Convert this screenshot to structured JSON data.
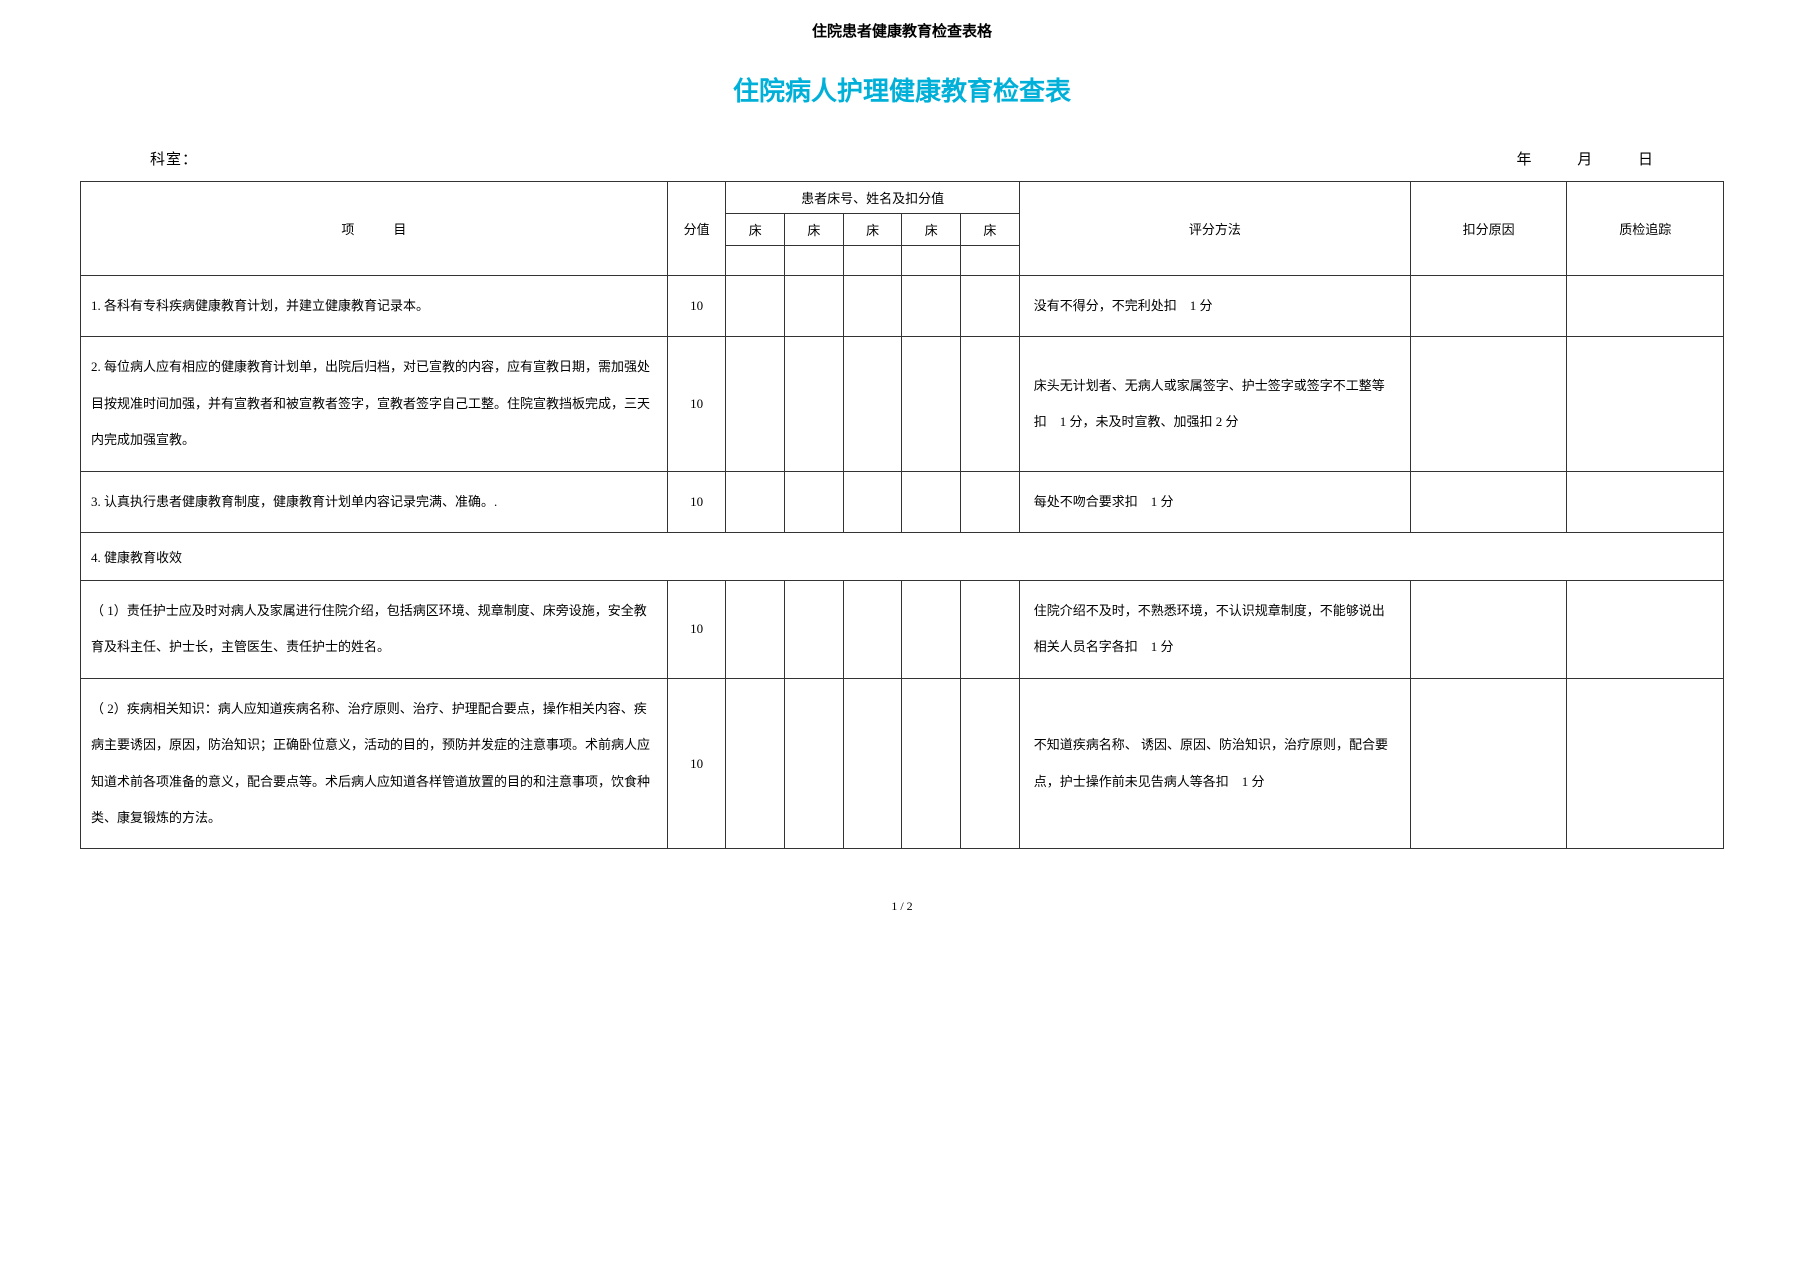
{
  "doc_header": "住院患者健康教育检查表格",
  "main_title": "住院病人护理健康教育检查表",
  "meta": {
    "dept_label": "科室：",
    "year": "年",
    "month": "月",
    "day": "日"
  },
  "headers": {
    "item": "项　　　目",
    "score": "分值",
    "patient": "患者床号、姓名及扣分值",
    "bed": "床",
    "method": "评分方法",
    "reason": "扣分原因",
    "track": "质检追踪"
  },
  "rows": [
    {
      "item": "1. 各科有专科疾病健康教育计划，并建立健康教育记录本。",
      "score": "10",
      "method": "没有不得分，不完利处扣　1 分"
    },
    {
      "item": "2. 每位病人应有相应的健康教育计划单，出院后归档，对已宣教的内容，应有宣教日期，需加强处目按规准时间加强，并有宣教者和被宣教者签字，宣教者签字自己工整。住院宣教挡板完成，三天内完成加强宣教。",
      "score": "10",
      "method": "床头无计划者、无病人或家属签字、护士签字或签字不工整等扣　1 分，未及时宣教、加强扣 2 分"
    },
    {
      "item": "3. 认真执行患者健康教育制度，健康教育计划单内容记录完满、准确。.",
      "score": "10",
      "method": "每处不吻合要求扣　1 分"
    }
  ],
  "section4": "4. 健康教育收效",
  "rows2": [
    {
      "item": "（ 1）责任护士应及时对病人及家属进行住院介绍，包括病区环境、规章制度、床旁设施，安全教育及科主任、护士长，主管医生、责任护士的姓名。",
      "score": "10",
      "method": "住院介绍不及时，不熟悉环境，不认识规章制度，不能够说出相关人员名字各扣　1 分"
    },
    {
      "item": "（ 2）疾病相关知识：病人应知道疾病名称、治疗原则、治疗、护理配合要点，操作相关内容、疾病主要诱因，原因，防治知识；正确卧位意义，活动的目的，预防并发症的注意事项。术前病人应知道术前各项准备的意义，配合要点等。术后病人应知道各样管道放置的目的和注意事项，饮食种类、康复锻炼的方法。",
      "score": "10",
      "method": "不知道疾病名称、 诱因、原因、防治知识，治疗原则，配合要点，护士操作前未见告病人等各扣　1 分"
    }
  ],
  "page_num": "1 / 2"
}
